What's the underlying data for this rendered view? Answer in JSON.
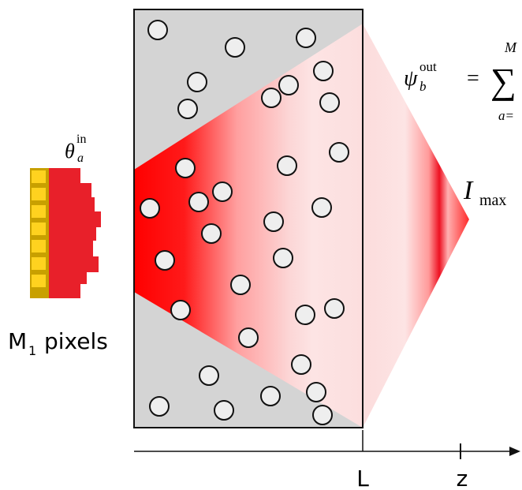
{
  "left_label": {
    "symbol": "θ",
    "subscript": "a",
    "superscript": "in"
  },
  "pixels_label": {
    "letter": "M",
    "subscript": "1",
    "text": "pixels"
  },
  "output_formula": {
    "symbol": "ψ",
    "subscript": "b",
    "superscript": "out",
    "equals": "=",
    "sum": "∑",
    "upper": "M",
    "lower": "a="
  },
  "intensity_label": {
    "symbol": "I",
    "subscript": "max"
  },
  "axis": {
    "length_label": "L",
    "z_label": "z"
  }
}
